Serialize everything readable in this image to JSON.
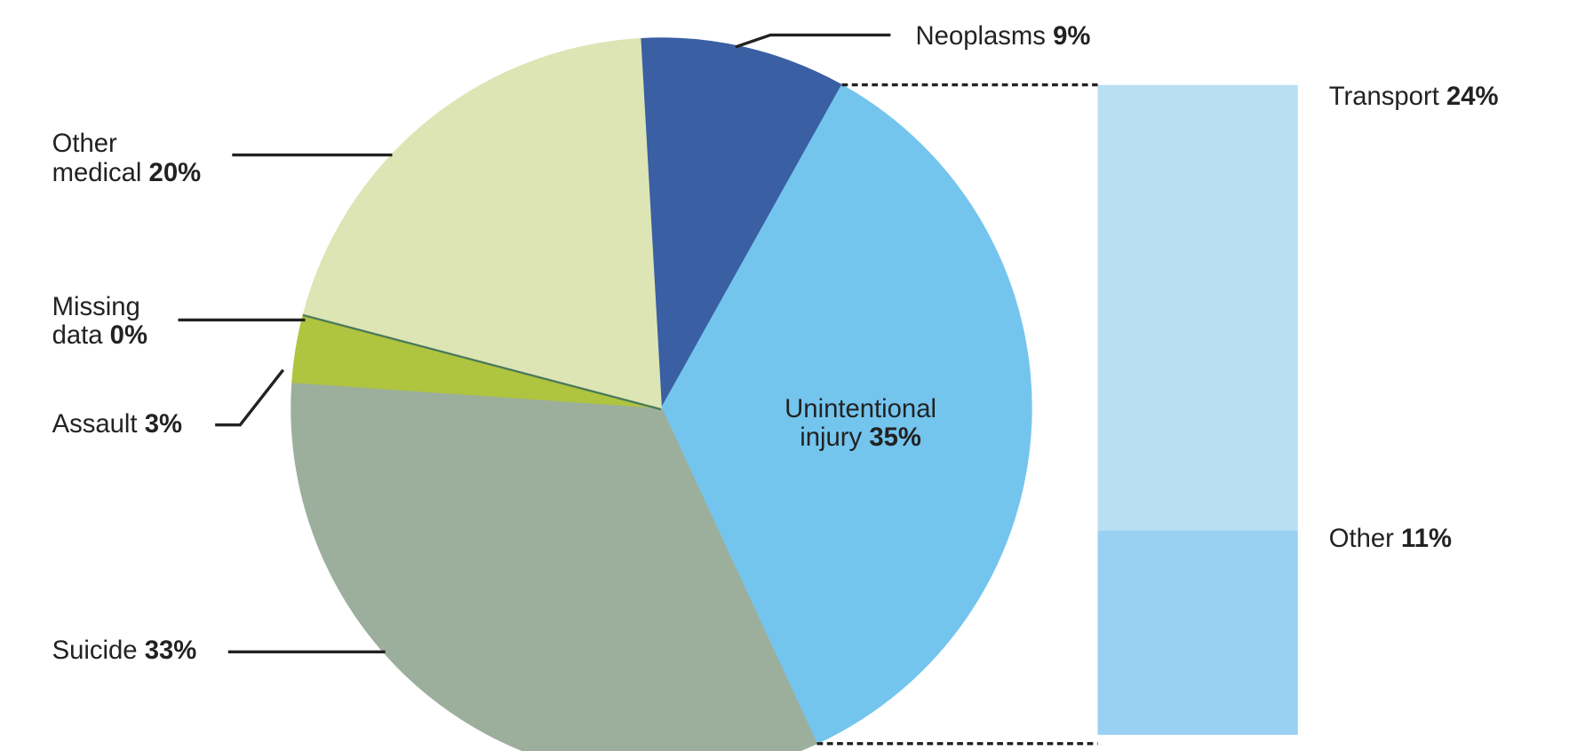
{
  "chart_data": {
    "type": "pie",
    "categories": [
      "Neoplasms",
      "Unintentional injury",
      "Suicide",
      "Assault",
      "Missing data",
      "Other medical"
    ],
    "values": [
      9,
      35,
      33,
      3,
      0,
      20
    ],
    "value_labels": [
      "9%",
      "35%",
      "33%",
      "3%",
      "0%",
      "20%"
    ],
    "colors": [
      "#3a5fa3",
      "#74c5ee",
      "#9caf9c",
      "#afc43f",
      "#4a7a5a",
      "#dde5b4"
    ],
    "breakdown": {
      "type": "stacked_bar",
      "categories": [
        "Transport",
        "Other"
      ],
      "values": [
        24,
        11
      ],
      "value_labels": [
        "24%",
        "11%"
      ],
      "colors": [
        "#b9dff5",
        "#98d1f2"
      ]
    }
  }
}
